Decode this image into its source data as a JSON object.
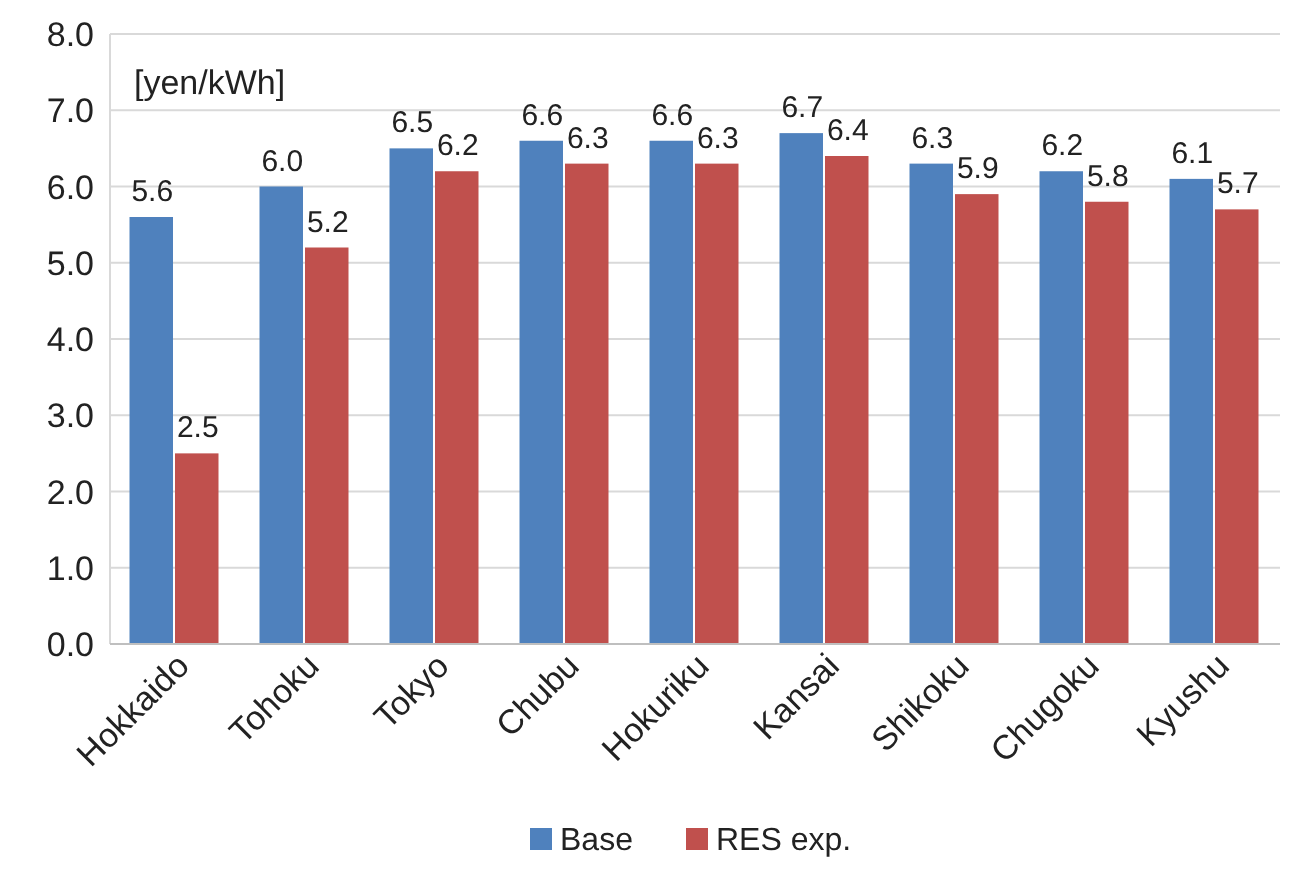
{
  "chart_data": {
    "type": "bar",
    "ylabel": "[yen/kWh]",
    "categories": [
      "Hokkaido",
      "Tohoku",
      "Tokyo",
      "Chubu",
      "Hokuriku",
      "Kansai",
      "Shikoku",
      "Chugoku",
      "Kyushu"
    ],
    "series": [
      {
        "name": "Base",
        "color": "#4f81bd",
        "values": [
          5.6,
          6.0,
          6.5,
          6.6,
          6.6,
          6.7,
          6.3,
          6.2,
          6.1
        ],
        "value_labels": [
          "5.6",
          "6.0",
          "6.5",
          "6.6",
          "6.6",
          "6.7",
          "6.3",
          "6.2",
          "6.1"
        ]
      },
      {
        "name": "RES exp.",
        "color": "#c0504d",
        "values": [
          2.5,
          5.2,
          6.2,
          6.3,
          6.3,
          6.4,
          5.9,
          5.8,
          5.7
        ],
        "value_labels": [
          "2.5",
          "5.2",
          "6.2",
          "6.3",
          "6.3",
          "6.4",
          "5.9",
          "5.8",
          "5.7"
        ]
      }
    ],
    "ylim": [
      0,
      8
    ],
    "yticks": [
      {
        "value": 0,
        "label": "0.0"
      },
      {
        "value": 1,
        "label": "1.0"
      },
      {
        "value": 2,
        "label": "2.0"
      },
      {
        "value": 3,
        "label": "3.0"
      },
      {
        "value": 4,
        "label": "4.0"
      },
      {
        "value": 5,
        "label": "5.0"
      },
      {
        "value": 6,
        "label": "6.0"
      },
      {
        "value": 7,
        "label": "7.0"
      },
      {
        "value": 8,
        "label": "8.0"
      }
    ],
    "grid": "y",
    "legend": "bottom"
  }
}
